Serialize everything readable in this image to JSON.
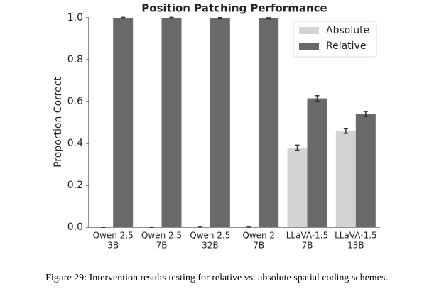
{
  "chart_data": {
    "type": "bar",
    "title": "Position Patching Performance",
    "y_label": "Proportion Correct",
    "categories": [
      [
        "Qwen 2.5",
        "3B"
      ],
      [
        "Qwen 2.5",
        "7B"
      ],
      [
        "Qwen 2.5",
        "32B"
      ],
      [
        "Qwen 2",
        "7B"
      ],
      [
        "LLaVA-1.5",
        "7B"
      ],
      [
        "LLaVA-1.5",
        "13B"
      ]
    ],
    "series": [
      {
        "name": "Absolute",
        "color": "#d3d3d3",
        "values": [
          0.0,
          0.0,
          0.002,
          0.002,
          0.38,
          0.46
        ],
        "errors": [
          0.001,
          0.001,
          0.002,
          0.002,
          0.012,
          0.012
        ]
      },
      {
        "name": "Relative",
        "color": "#696969",
        "values": [
          1.0,
          1.0,
          0.998,
          0.997,
          0.615,
          0.54
        ],
        "errors": [
          0.002,
          0.002,
          0.003,
          0.003,
          0.013,
          0.012
        ]
      }
    ],
    "ylim": [
      0,
      1.0
    ],
    "yticks": [
      {
        "value": 0,
        "label": "0.0"
      },
      {
        "value": 0.2,
        "label": "0.2"
      },
      {
        "value": 0.4,
        "label": "0.4"
      },
      {
        "value": 0.6,
        "label": "0.6"
      },
      {
        "value": 0.8,
        "label": "0.8"
      },
      {
        "value": 1.0,
        "label": "1.0"
      }
    ],
    "legend": "upper right",
    "caption": "Figure 29: Intervention results testing for relative vs. absolute spatial coding schemes."
  }
}
